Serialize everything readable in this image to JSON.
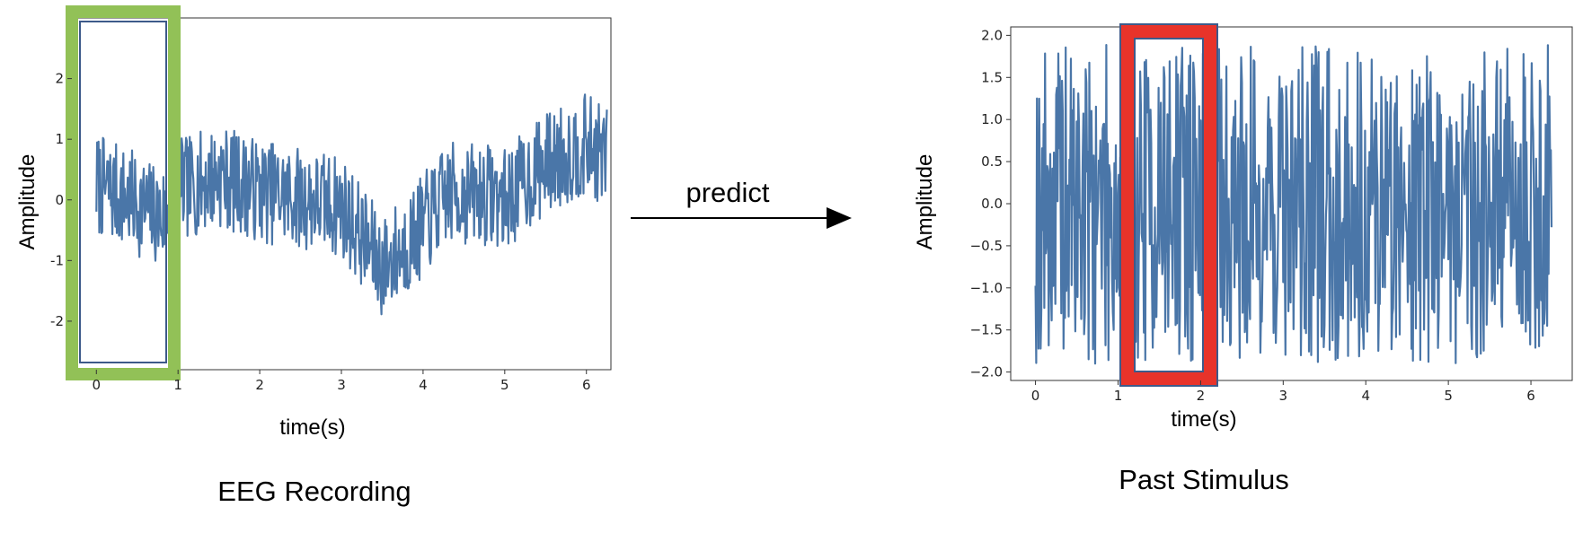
{
  "arrow_label": "predict",
  "chart_data": [
    {
      "type": "line",
      "title": "",
      "caption": "EEG Recording",
      "xlabel": "time(s)",
      "ylabel": "Amplitude",
      "xlim": [
        -0.3,
        6.3
      ],
      "ylim": [
        -2.8,
        3.0
      ],
      "xticks": [
        "0",
        "1",
        "2",
        "3",
        "4",
        "5",
        "6"
      ],
      "yticks": [
        "-2",
        "-1",
        "0",
        "1",
        "2"
      ],
      "line_color": "#4a76a8",
      "x_range": [
        0,
        6.25
      ],
      "trend_points": [
        [
          0,
          0.25
        ],
        [
          0.4,
          0.0
        ],
        [
          0.8,
          -0.3
        ],
        [
          1.0,
          0.15
        ],
        [
          1.5,
          0.4
        ],
        [
          2.0,
          0.15
        ],
        [
          2.6,
          0.0
        ],
        [
          3.0,
          -0.1
        ],
        [
          3.5,
          -1.1
        ],
        [
          3.9,
          -0.6
        ],
        [
          4.3,
          0.1
        ],
        [
          4.8,
          0.1
        ],
        [
          5.0,
          0.0
        ],
        [
          5.5,
          0.6
        ],
        [
          6.0,
          0.9
        ],
        [
          6.25,
          0.7
        ]
      ],
      "noise_amplitude": 0.85,
      "highlight": {
        "x_range": [
          -0.35,
          1.0
        ],
        "color": "#92c157",
        "inner_color": "#3d5a8a"
      }
    },
    {
      "type": "line",
      "title": "",
      "caption": "Past Stimulus",
      "xlabel": "time(s)",
      "ylabel": "Amplitude",
      "xlim": [
        -0.3,
        6.5
      ],
      "ylim": [
        -2.1,
        2.1
      ],
      "xticks": [
        "0",
        "1",
        "2",
        "3",
        "4",
        "5",
        "6"
      ],
      "yticks": [
        "2.0",
        "1.5",
        "1.0",
        "0.5",
        "0.0",
        "−0.5",
        "−1.0",
        "−1.5",
        "−2.0"
      ],
      "line_color": "#4a76a8",
      "x_range": [
        0,
        6.25
      ],
      "trend_points": [
        [
          0,
          0.0
        ],
        [
          6.25,
          0.0
        ]
      ],
      "noise_amplitude": 1.9,
      "highlight": {
        "x_range": [
          1.1,
          2.15
        ],
        "color": "#e8332a",
        "inner_color": "#3d5a8a"
      }
    }
  ]
}
